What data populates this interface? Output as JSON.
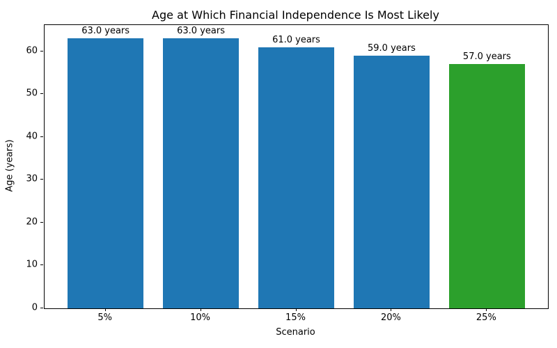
{
  "chart_data": {
    "type": "bar",
    "title": "Age at Which Financial Independence Is Most Likely",
    "xlabel": "Scenario",
    "ylabel": "Age (years)",
    "categories": [
      "5%",
      "10%",
      "15%",
      "20%",
      "25%"
    ],
    "values": [
      63.0,
      63.0,
      61.0,
      59.0,
      57.0
    ],
    "bar_labels": [
      "63.0 years",
      "63.0 years",
      "61.0 years",
      "59.0 years",
      "57.0 years"
    ],
    "bar_colors": [
      "#1f77b4",
      "#1f77b4",
      "#1f77b4",
      "#1f77b4",
      "#2ca02c"
    ],
    "highlight_color": "#2ca02c",
    "default_color": "#1f77b4",
    "yticks": [
      0,
      10,
      20,
      30,
      40,
      50,
      60
    ],
    "ylim": [
      0,
      66.15
    ],
    "grid": false,
    "legend_position": "none"
  }
}
